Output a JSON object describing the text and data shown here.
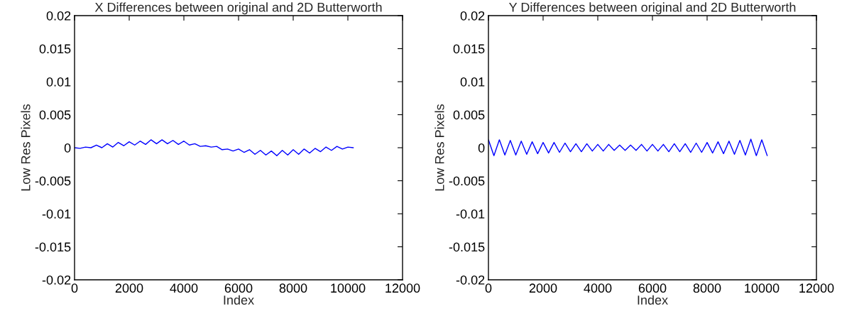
{
  "chart_data": [
    {
      "type": "line",
      "title": "X Differences between original and 2D Butterworth",
      "xlabel": "Index",
      "ylabel": "Low Res Pixels",
      "xlim": [
        0,
        12000
      ],
      "ylim": [
        -0.02,
        0.02
      ],
      "xticks": [
        0,
        2000,
        4000,
        6000,
        8000,
        10000,
        12000
      ],
      "yticks": [
        -0.02,
        -0.015,
        -0.01,
        -0.005,
        0,
        0.005,
        0.01,
        0.015,
        0.02
      ],
      "grid": false,
      "legend": false,
      "series": [
        {
          "color": "#0000ff",
          "x": [
            0,
            200,
            400,
            600,
            800,
            1000,
            1200,
            1400,
            1600,
            1800,
            2000,
            2200,
            2400,
            2600,
            2800,
            3000,
            3200,
            3400,
            3600,
            3800,
            4000,
            4200,
            4400,
            4600,
            4800,
            5000,
            5200,
            5400,
            5600,
            5800,
            6000,
            6200,
            6400,
            6600,
            6800,
            7000,
            7200,
            7400,
            7600,
            7800,
            8000,
            8200,
            8400,
            8600,
            8800,
            9000,
            9200,
            9400,
            9600,
            9800,
            10000,
            10200
          ],
          "values": [
            0.0,
            -0.0001,
            0.0001,
            0.0,
            0.0004,
            0.0,
            0.0006,
            0.0001,
            0.0008,
            0.0003,
            0.0009,
            0.0004,
            0.001,
            0.0005,
            0.0012,
            0.0006,
            0.0012,
            0.0006,
            0.0011,
            0.0005,
            0.001,
            0.0004,
            0.0006,
            0.0002,
            0.0003,
            0.0001,
            0.0002,
            -0.0003,
            -0.0002,
            -0.0005,
            -0.0002,
            -0.0007,
            -0.0003,
            -0.001,
            -0.0004,
            -0.0011,
            -0.0005,
            -0.0012,
            -0.0004,
            -0.0011,
            -0.0003,
            -0.001,
            -0.0002,
            -0.0008,
            -0.0001,
            -0.0006,
            0.0001,
            -0.0004,
            0.0002,
            -0.0002,
            0.0001,
            0.0
          ]
        }
      ]
    },
    {
      "type": "line",
      "title": "Y Differences between original and 2D Butterworth",
      "xlabel": "Index",
      "ylabel": "Low Res Pixels",
      "xlim": [
        0,
        12000
      ],
      "ylim": [
        -0.02,
        0.02
      ],
      "xticks": [
        0,
        2000,
        4000,
        6000,
        8000,
        10000,
        12000
      ],
      "yticks": [
        -0.02,
        -0.015,
        -0.01,
        -0.005,
        0,
        0.005,
        0.01,
        0.015,
        0.02
      ],
      "grid": false,
      "legend": false,
      "series": [
        {
          "color": "#0000ff",
          "x": [
            0,
            200,
            400,
            600,
            800,
            1000,
            1200,
            1400,
            1600,
            1800,
            2000,
            2200,
            2400,
            2600,
            2800,
            3000,
            3200,
            3400,
            3600,
            3800,
            4000,
            4200,
            4400,
            4600,
            4800,
            5000,
            5200,
            5400,
            5600,
            5800,
            6000,
            6200,
            6400,
            6600,
            6800,
            7000,
            7200,
            7400,
            7600,
            7800,
            8000,
            8200,
            8400,
            8600,
            8800,
            9000,
            9200,
            9400,
            9600,
            9800,
            10000,
            10200
          ],
          "values": [
            0.0012,
            -0.0012,
            0.0012,
            -0.0011,
            0.0011,
            -0.0011,
            0.001,
            -0.001,
            0.0009,
            -0.0009,
            0.0008,
            -0.0008,
            0.0008,
            -0.0007,
            0.0007,
            -0.0006,
            0.0006,
            -0.0006,
            0.0006,
            -0.0005,
            0.0005,
            -0.0005,
            0.0005,
            -0.0004,
            0.0004,
            -0.0004,
            0.0004,
            -0.0004,
            0.0005,
            -0.0005,
            0.0005,
            -0.0005,
            0.0005,
            -0.0006,
            0.0006,
            -0.0006,
            0.0006,
            -0.0007,
            0.0007,
            -0.0007,
            0.0008,
            -0.0008,
            0.0009,
            -0.0009,
            0.001,
            -0.001,
            0.0011,
            -0.0011,
            0.0013,
            -0.0012,
            0.0012,
            -0.0012
          ]
        }
      ]
    }
  ]
}
